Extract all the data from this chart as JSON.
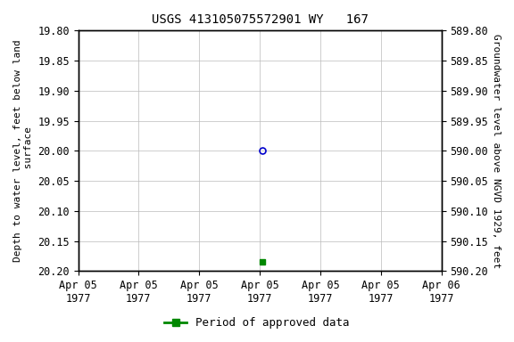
{
  "title": "USGS 413105075572901 WY   167",
  "ylabel_left": "Depth to water level, feet below land\n surface",
  "ylabel_right": "Groundwater level above NGVD 1929, feet",
  "ylim_left": [
    19.8,
    20.2
  ],
  "ylim_right": [
    590.2,
    589.8
  ],
  "xlim": [
    0,
    6
  ],
  "xtick_positions": [
    0,
    1,
    2,
    3,
    4,
    5,
    6
  ],
  "xtick_labels": [
    "Apr 05\n1977",
    "Apr 05\n1977",
    "Apr 05\n1977",
    "Apr 05\n1977",
    "Apr 05\n1977",
    "Apr 05\n1977",
    "Apr 06\n1977"
  ],
  "ytick_left": [
    19.8,
    19.85,
    19.9,
    19.95,
    20.0,
    20.05,
    20.1,
    20.15,
    20.2
  ],
  "ytick_right": [
    590.2,
    590.15,
    590.1,
    590.05,
    590.0,
    589.95,
    589.9,
    589.85,
    589.8
  ],
  "point_blue_x": 3.05,
  "point_blue_y": 20.0,
  "point_green_x": 3.05,
  "point_green_y": 20.185,
  "point_blue_color": "#0000cc",
  "point_green_color": "#008800",
  "grid_color": "#bbbbbb",
  "background_color": "#ffffff",
  "title_fontsize": 10,
  "axis_label_fontsize": 8,
  "tick_fontsize": 8.5,
  "legend_label": "Period of approved data",
  "legend_color": "#008800"
}
